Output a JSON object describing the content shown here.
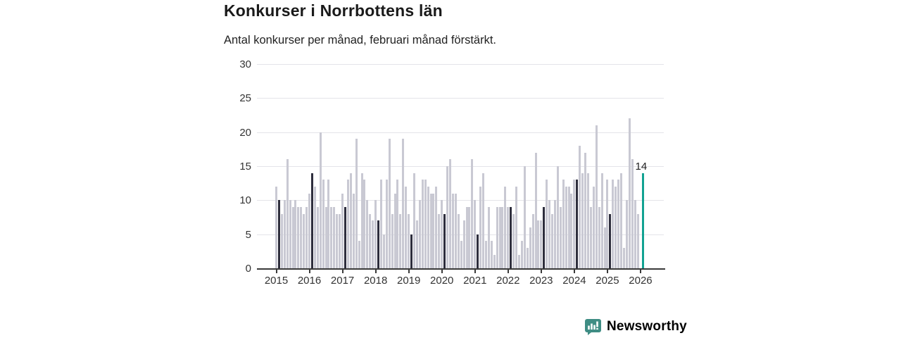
{
  "header": {
    "title": "Konkurser i Norrbottens län",
    "subtitle": "Antal konkurser per månad, februari månad förstärkt."
  },
  "chart_data": {
    "type": "bar",
    "title": "Konkurser i Norrbottens län",
    "subtitle": "Antal konkurser per månad, februari månad förstärkt.",
    "xlabel": "",
    "ylabel": "",
    "ylim": [
      0,
      30
    ],
    "yticks": [
      0,
      5,
      10,
      15,
      20,
      25,
      30
    ],
    "grid": "horizontal",
    "legend": "none",
    "x_year_labels": [
      "2015",
      "2016",
      "2017",
      "2018",
      "2019",
      "2020",
      "2021",
      "2022",
      "2023",
      "2024",
      "2025",
      "2026"
    ],
    "emphasized_month_index": 1,
    "emphasis_note": "februari månad förstärkt",
    "values_by_year": {
      "2015": [
        12,
        10,
        8,
        10,
        16,
        10,
        9,
        10,
        9,
        9,
        8,
        9
      ],
      "2016": [
        11,
        14,
        12,
        9,
        20,
        13,
        9,
        13,
        9,
        9,
        8,
        8
      ],
      "2017": [
        11,
        9,
        13,
        14,
        11,
        19,
        4,
        14,
        13,
        10,
        8,
        7
      ],
      "2018": [
        10,
        7,
        13,
        5,
        13,
        19,
        8,
        11,
        13,
        8,
        19,
        12
      ],
      "2019": [
        8,
        5,
        14,
        7,
        10,
        13,
        13,
        12,
        11,
        11,
        12,
        8
      ],
      "2020": [
        10,
        8,
        15,
        16,
        11,
        11,
        8,
        4,
        7,
        9,
        9,
        16
      ],
      "2021": [
        10,
        5,
        12,
        14,
        4,
        9,
        4,
        2,
        9,
        9,
        9,
        12
      ],
      "2022": [
        9,
        9,
        8,
        12,
        2,
        4,
        15,
        3,
        6,
        8,
        17,
        7
      ],
      "2023": [
        7,
        9,
        13,
        10,
        8,
        10,
        15,
        9,
        13,
        12,
        12,
        11
      ],
      "2024": [
        13,
        13,
        18,
        14,
        17,
        14,
        9,
        12,
        21,
        9,
        14,
        6
      ],
      "2025": [
        13,
        8,
        13,
        12,
        13,
        14,
        3,
        10,
        22,
        16,
        10,
        8
      ],
      "2026": [
        0,
        14
      ]
    },
    "latest_bar": {
      "year": "2026",
      "month_index": 1,
      "value": 14
    },
    "annotation": {
      "text": "14"
    },
    "colors": {
      "bar_default": "#c9c9d3",
      "bar_february": "#2e2e3d",
      "bar_latest": "#12a292",
      "gridline": "#e4e4e9",
      "axis": "#3a3a3a",
      "tick_text": "#333333",
      "title_text": "#1a1a1a"
    }
  },
  "branding": {
    "logo_text": "Newsworthy",
    "logo_color": "#3f8d84",
    "icon": "newsworthy-speech-bubble-bar-chart-icon"
  }
}
